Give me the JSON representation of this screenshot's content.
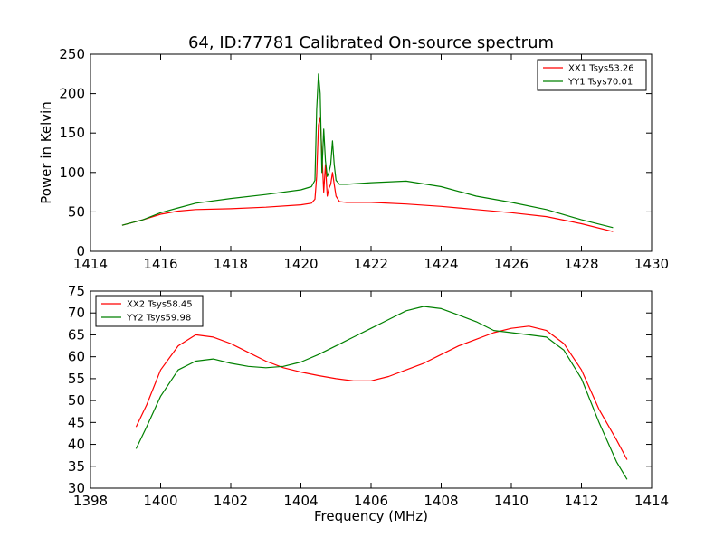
{
  "figure": {
    "title": "64, ID:77781 Calibrated On-source spectrum",
    "xlabel": "Frequency (MHz)",
    "top_ylabel": "Power in Kelvin"
  },
  "chart_data": [
    {
      "type": "line",
      "title": "64, ID:77781 Calibrated On-source spectrum",
      "xlabel": "",
      "ylabel": "Power in Kelvin",
      "xlim": [
        1414,
        1430
      ],
      "ylim": [
        0,
        250
      ],
      "xticks": [
        1414,
        1416,
        1418,
        1420,
        1422,
        1424,
        1426,
        1428,
        1430
      ],
      "yticks": [
        0,
        50,
        100,
        150,
        200,
        250
      ],
      "legend": "top-right",
      "grid": false,
      "series": [
        {
          "name": "XX1 Tsys53.26",
          "color": "#ff0000",
          "x": [
            1414.9,
            1415.5,
            1416.0,
            1416.5,
            1417.0,
            1418.0,
            1419.0,
            1420.0,
            1420.3,
            1420.4,
            1420.45,
            1420.5,
            1420.55,
            1420.6,
            1420.65,
            1420.7,
            1420.75,
            1420.8,
            1420.85,
            1420.9,
            1420.95,
            1421.0,
            1421.1,
            1421.3,
            1422.0,
            1423.0,
            1424.0,
            1425.0,
            1426.0,
            1427.0,
            1428.0,
            1428.9
          ],
          "y": [
            33,
            40,
            47,
            51,
            53,
            54,
            56,
            59,
            61,
            66,
            95,
            160,
            170,
            125,
            75,
            110,
            70,
            80,
            85,
            100,
            85,
            70,
            63,
            62,
            62,
            60,
            57,
            53,
            49,
            44,
            35,
            25
          ]
        },
        {
          "name": "YY1 Tsys70.01",
          "color": "#008000",
          "x": [
            1414.9,
            1415.5,
            1416.0,
            1416.5,
            1417.0,
            1418.0,
            1419.0,
            1420.0,
            1420.3,
            1420.4,
            1420.45,
            1420.5,
            1420.55,
            1420.6,
            1420.65,
            1420.7,
            1420.75,
            1420.8,
            1420.85,
            1420.9,
            1420.95,
            1421.0,
            1421.1,
            1421.3,
            1422.0,
            1423.0,
            1424.0,
            1425.0,
            1426.0,
            1427.0,
            1428.0,
            1428.9
          ],
          "y": [
            33,
            40,
            49,
            55,
            61,
            67,
            72,
            78,
            82,
            90,
            180,
            225,
            200,
            100,
            155,
            115,
            95,
            100,
            110,
            140,
            110,
            90,
            85,
            85,
            87,
            89,
            82,
            70,
            62,
            53,
            40,
            30
          ]
        }
      ]
    },
    {
      "type": "line",
      "title": "",
      "xlabel": "Frequency (MHz)",
      "ylabel": "",
      "xlim": [
        1398,
        1414
      ],
      "ylim": [
        30,
        75
      ],
      "xticks": [
        1398,
        1400,
        1402,
        1404,
        1406,
        1408,
        1410,
        1412,
        1414
      ],
      "yticks": [
        30,
        35,
        40,
        45,
        50,
        55,
        60,
        65,
        70,
        75
      ],
      "legend": "top-left",
      "grid": false,
      "series": [
        {
          "name": "XX2 Tsys58.45",
          "color": "#ff0000",
          "x": [
            1399.3,
            1399.6,
            1400.0,
            1400.5,
            1401.0,
            1401.5,
            1402.0,
            1402.5,
            1403.0,
            1403.5,
            1404.0,
            1404.5,
            1405.0,
            1405.5,
            1406.0,
            1406.5,
            1407.0,
            1407.5,
            1408.0,
            1408.5,
            1409.0,
            1409.5,
            1410.0,
            1410.5,
            1411.0,
            1411.5,
            1412.0,
            1412.5,
            1413.0,
            1413.3
          ],
          "y": [
            44,
            49,
            57,
            62.5,
            65,
            64.5,
            63,
            61,
            59,
            57.5,
            56.5,
            55.7,
            55,
            54.5,
            54.5,
            55.5,
            57,
            58.5,
            60.5,
            62.5,
            64,
            65.5,
            66.5,
            67,
            66,
            63,
            57,
            48,
            41,
            36.5
          ]
        },
        {
          "name": "YY2 Tsys59.98",
          "color": "#008000",
          "x": [
            1399.3,
            1399.6,
            1400.0,
            1400.5,
            1401.0,
            1401.5,
            1402.0,
            1402.5,
            1403.0,
            1403.5,
            1404.0,
            1404.5,
            1405.0,
            1405.5,
            1406.0,
            1406.5,
            1407.0,
            1407.5,
            1408.0,
            1408.5,
            1409.0,
            1409.5,
            1410.0,
            1410.5,
            1411.0,
            1411.5,
            1412.0,
            1412.5,
            1413.0,
            1413.3
          ],
          "y": [
            39,
            44,
            51,
            57,
            59,
            59.5,
            58.5,
            57.8,
            57.5,
            57.8,
            58.8,
            60.5,
            62.5,
            64.5,
            66.5,
            68.5,
            70.5,
            71.5,
            71,
            69.5,
            68,
            66,
            65.5,
            65,
            64.5,
            61.5,
            55,
            45,
            36,
            32
          ]
        }
      ]
    }
  ]
}
